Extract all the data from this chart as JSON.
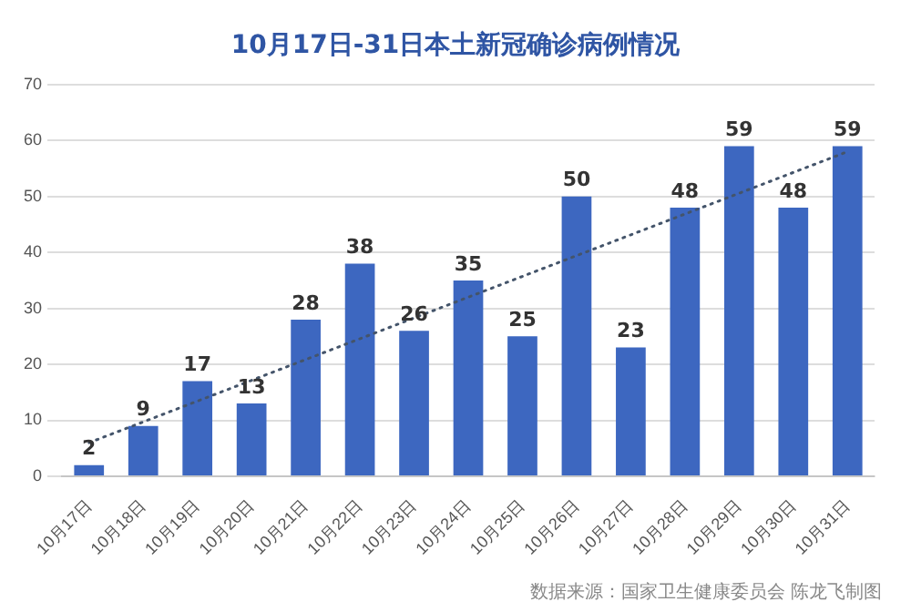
{
  "chart_data": {
    "type": "bar",
    "title": "10月17日-31日本土新冠确诊病例情况",
    "categories": [
      "10月17日",
      "10月18日",
      "10月19日",
      "10月20日",
      "10月21日",
      "10月22日",
      "10月23日",
      "10月24日",
      "10月25日",
      "10月26日",
      "10月27日",
      "10月28日",
      "10月29日",
      "10月30日",
      "10月31日"
    ],
    "series": [
      {
        "color": "#3d67c0",
        "values": [
          2,
          9,
          17,
          13,
          28,
          38,
          26,
          35,
          25,
          50,
          23,
          48,
          59,
          48,
          59
        ],
        "value_labels": [
          "2",
          "9",
          "17",
          "13",
          "28",
          "38",
          "26",
          "35",
          "25",
          "50",
          "23",
          "48",
          "59",
          "48",
          "59"
        ]
      },
      {
        "type": "line",
        "color": "#44546a",
        "line_style": "dotted",
        "x": [
          "10月17日",
          "10月31日"
        ],
        "values": [
          6,
          58
        ]
      }
    ],
    "ylim": [
      0,
      70
    ],
    "yticks": [
      0,
      10,
      20,
      30,
      40,
      50,
      60,
      70
    ],
    "grid": "y",
    "legend": false,
    "annotations": [
      "数据来源：国家卫生健康委员会    陈龙飞制图"
    ]
  }
}
